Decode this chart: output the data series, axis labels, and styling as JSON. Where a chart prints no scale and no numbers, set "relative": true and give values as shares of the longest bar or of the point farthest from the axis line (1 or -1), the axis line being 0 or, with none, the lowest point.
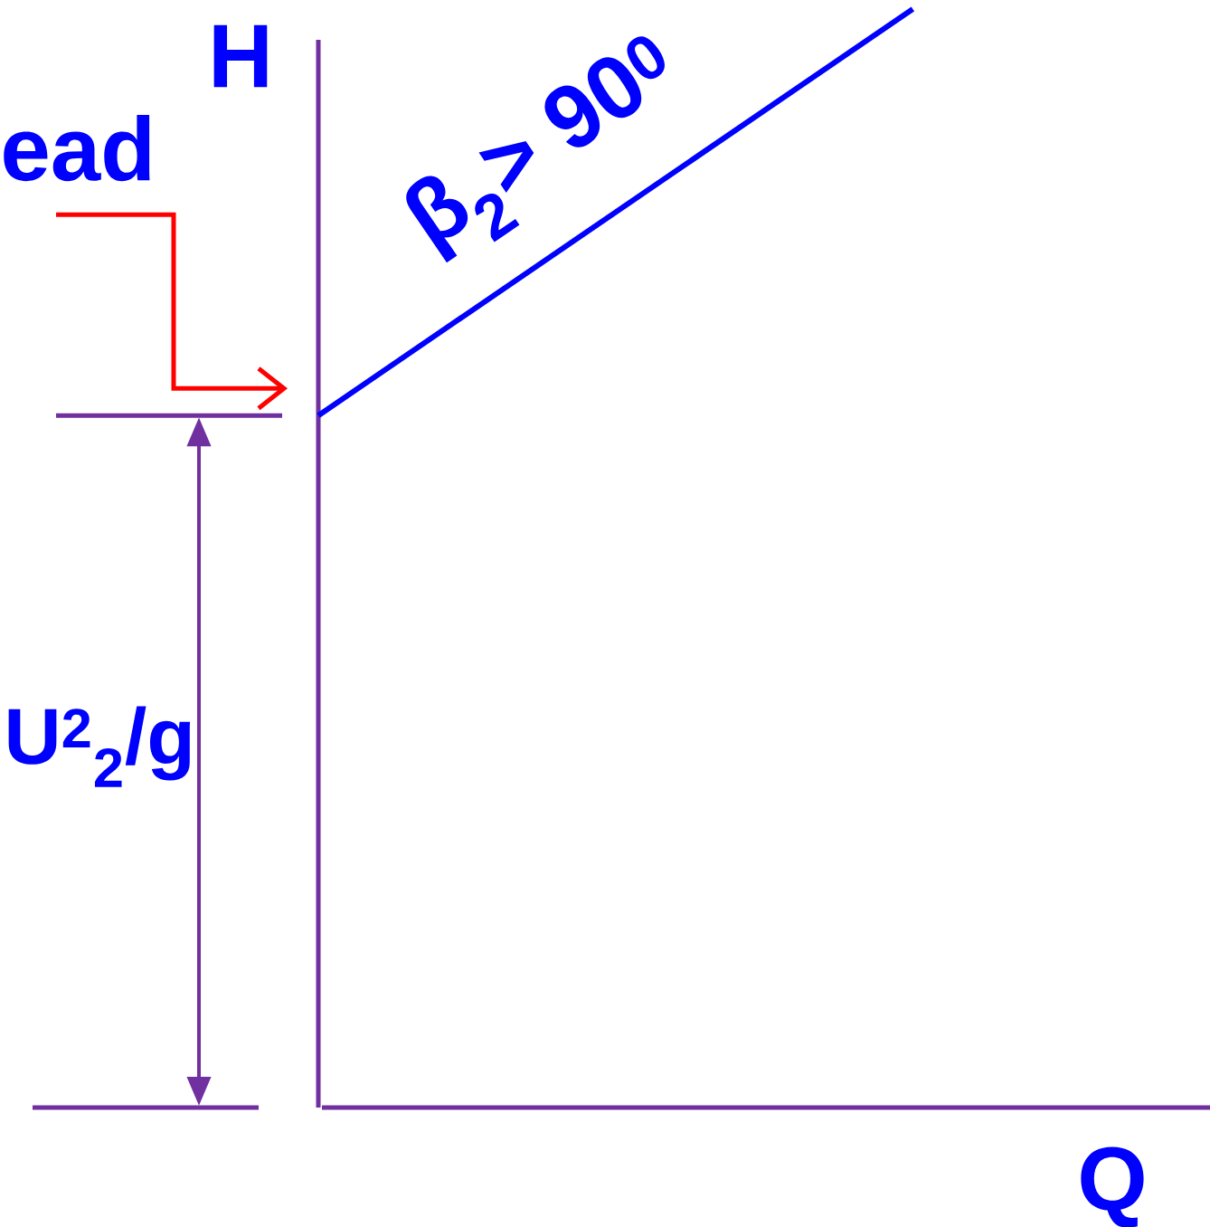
{
  "chart_data": {
    "type": "line",
    "xlabel": "Q",
    "ylabel": "H",
    "categories": [
      null,
      null,
      null,
      null
    ],
    "relative": true,
    "series": [
      {
        "name": "β$_{2}$> 90$^{0}$",
        "color": "#0000ff",
        "values": [
          0.63,
          0.815,
          1,
          null
        ]
      }
    ],
    "annotations": [
      "ead",
      "U$^{2}$$_{2}$/g"
    ]
  }
}
